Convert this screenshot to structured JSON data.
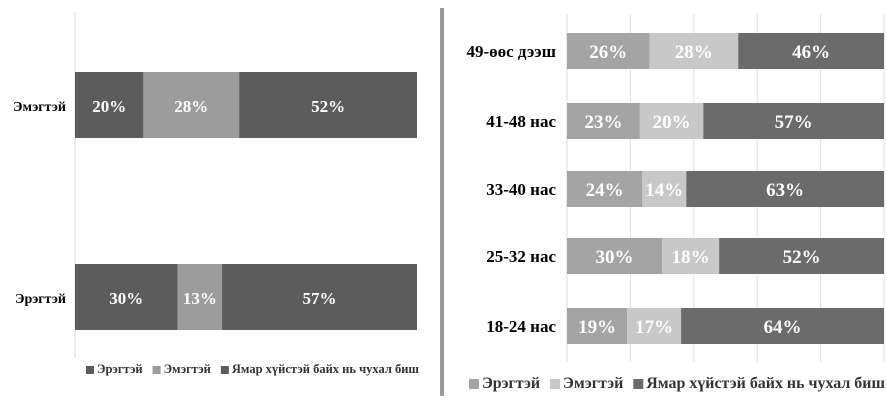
{
  "chart_data": [
    {
      "type": "bar",
      "stacked": "100%",
      "orientation": "horizontal",
      "title": "",
      "xlabel": "",
      "ylabel": "",
      "categories": [
        "Эмэгтэй",
        "Эрэгтэй"
      ],
      "series": [
        {
          "name": "Эрэгтэй",
          "color": "#5c5c5c",
          "values": [
            20,
            30
          ],
          "labels": [
            "20%",
            "30%"
          ]
        },
        {
          "name": "Эмэгтэй",
          "color": "#9c9c9c",
          "values": [
            28,
            13
          ],
          "labels": [
            "28%",
            "13%"
          ]
        },
        {
          "name": "Ямар хүйстэй байх нь чухал биш",
          "color": "#5c5c5c",
          "values": [
            52,
            57
          ],
          "labels": [
            "52%",
            "57%"
          ]
        }
      ],
      "grid": false,
      "legend_position": "bottom"
    },
    {
      "type": "bar",
      "stacked": "100%",
      "orientation": "horizontal",
      "title": "",
      "xlabel": "",
      "ylabel": "",
      "categories": [
        "49-өөс дээш",
        "41-48 нас",
        "33-40 нас",
        "25-32 нас",
        "18-24 нас"
      ],
      "series": [
        {
          "name": "Эрэгтэй",
          "color": "#a4a4a4",
          "values": [
            26,
            23,
            24,
            30,
            19
          ],
          "labels": [
            "26%",
            "23%",
            "24%",
            "30%",
            "19%"
          ]
        },
        {
          "name": "Эмэгтэй",
          "color": "#c8c8c8",
          "values": [
            28,
            20,
            14,
            18,
            17
          ],
          "labels": [
            "28%",
            "20%",
            "14%",
            "18%",
            "17%"
          ]
        },
        {
          "name": "Ямар хүйстэй байх нь чухал биш",
          "color": "#6b6b6b",
          "values": [
            46,
            57,
            63,
            52,
            64
          ],
          "labels": [
            "46%",
            "57%",
            "63%",
            "52%",
            "64%"
          ]
        }
      ],
      "grid": true,
      "legend_position": "bottom"
    }
  ]
}
